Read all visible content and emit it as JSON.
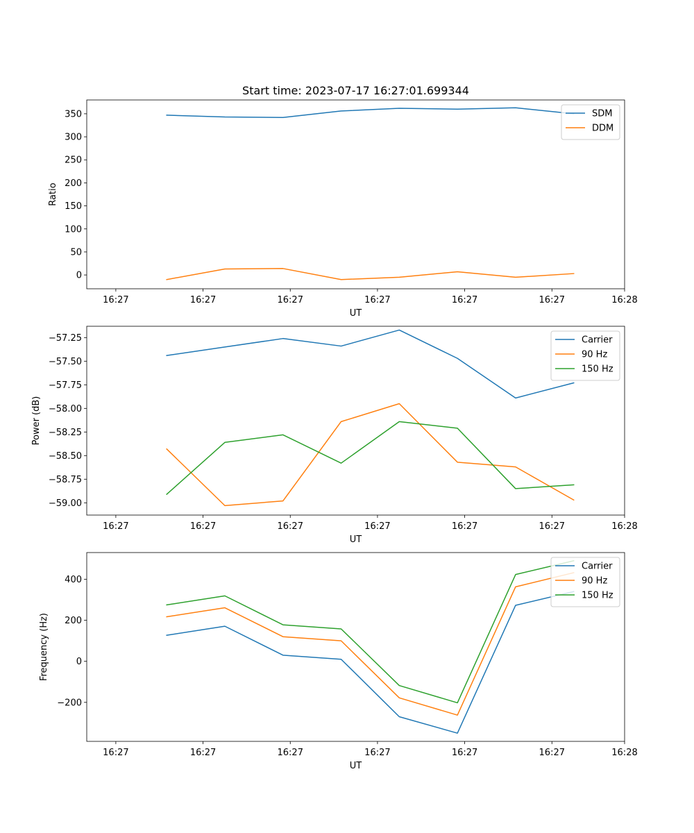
{
  "figure": {
    "title": "Start time: 2023-07-17 16:27:01.699344"
  },
  "colors": {
    "blue": "#1f77b4",
    "orange": "#ff7f0e",
    "green": "#2ca02c",
    "axis": "#000000",
    "legend_border": "#cccccc"
  },
  "chart_data": [
    {
      "type": "line",
      "title": "Start time: 2023-07-17 16:27:01.699344",
      "xlabel": "UT",
      "ylabel": "Ratio",
      "x_seconds": [
        1.7,
        2.5,
        3.3,
        4.1,
        4.9,
        5.7,
        6.5,
        7.3
      ],
      "xlim": [
        0.6,
        8.0
      ],
      "x_tick_values": [
        1,
        2.2,
        3.4,
        4.6,
        5.8,
        7.0,
        8.0
      ],
      "x_tick_labels": [
        "16:27",
        "16:27",
        "16:27",
        "16:27",
        "16:27",
        "16:27",
        "16:28"
      ],
      "ylim": [
        -30,
        380
      ],
      "y_ticks": [
        0,
        50,
        100,
        150,
        200,
        250,
        300,
        350
      ],
      "legend_position": "top-right",
      "series": [
        {
          "name": "SDM",
          "color": "#1f77b4",
          "values": [
            347,
            343,
            342,
            356,
            362,
            360,
            363,
            350
          ]
        },
        {
          "name": "DDM",
          "color": "#ff7f0e",
          "values": [
            -10,
            13,
            14,
            -10,
            -5,
            7,
            -5,
            3
          ]
        }
      ]
    },
    {
      "type": "line",
      "title": "",
      "xlabel": "UT",
      "ylabel": "Power (dB)",
      "x_seconds": [
        1.7,
        2.5,
        3.3,
        4.1,
        4.9,
        5.7,
        6.5,
        7.3
      ],
      "xlim": [
        0.6,
        8.0
      ],
      "x_tick_values": [
        1,
        2.2,
        3.4,
        4.6,
        5.8,
        7.0,
        8.0
      ],
      "x_tick_labels": [
        "16:27",
        "16:27",
        "16:27",
        "16:27",
        "16:27",
        "16:27",
        "16:28"
      ],
      "ylim": [
        -59.13,
        -57.13
      ],
      "y_ticks": [
        -59.0,
        -58.75,
        -58.5,
        -58.25,
        -58.0,
        -57.75,
        -57.5,
        -57.25
      ],
      "y_tick_labels": [
        "−59.00",
        "−58.75",
        "−58.50",
        "−58.25",
        "−58.00",
        "−57.75",
        "−57.50",
        "−57.25"
      ],
      "legend_position": "top-right",
      "series": [
        {
          "name": "Carrier",
          "color": "#1f77b4",
          "values": [
            -57.44,
            -57.35,
            -57.26,
            -57.34,
            -57.17,
            -57.47,
            -57.89,
            -57.73
          ]
        },
        {
          "name": "90 Hz",
          "color": "#ff7f0e",
          "values": [
            -58.43,
            -59.03,
            -58.98,
            -58.14,
            -57.95,
            -58.57,
            -58.62,
            -58.97
          ]
        },
        {
          "name": "150 Hz",
          "color": "#2ca02c",
          "values": [
            -58.91,
            -58.36,
            -58.28,
            -58.58,
            -58.14,
            -58.21,
            -58.85,
            -58.81
          ]
        }
      ]
    },
    {
      "type": "line",
      "title": "",
      "xlabel": "UT",
      "ylabel": "Frequency (Hz)",
      "x_seconds": [
        1.7,
        2.5,
        3.3,
        4.1,
        4.9,
        5.7,
        6.5,
        7.3
      ],
      "xlim": [
        0.6,
        8.0
      ],
      "x_tick_values": [
        1,
        2.2,
        3.4,
        4.6,
        5.8,
        7.0,
        8.0
      ],
      "x_tick_labels": [
        "16:27",
        "16:27",
        "16:27",
        "16:27",
        "16:27",
        "16:27",
        "16:28"
      ],
      "ylim": [
        -390,
        530
      ],
      "y_ticks": [
        -200,
        0,
        200,
        400
      ],
      "y_tick_labels": [
        "−200",
        "0",
        "200",
        "400"
      ],
      "legend_position": "top-right",
      "series": [
        {
          "name": "Carrier",
          "color": "#1f77b4",
          "values": [
            127,
            171,
            30,
            10,
            -270,
            -350,
            273,
            340
          ]
        },
        {
          "name": "90 Hz",
          "color": "#ff7f0e",
          "values": [
            217,
            261,
            120,
            100,
            -178,
            -262,
            363,
            432
          ]
        },
        {
          "name": "150 Hz",
          "color": "#2ca02c",
          "values": [
            275,
            319,
            178,
            158,
            -118,
            -202,
            423,
            490
          ]
        }
      ]
    }
  ]
}
